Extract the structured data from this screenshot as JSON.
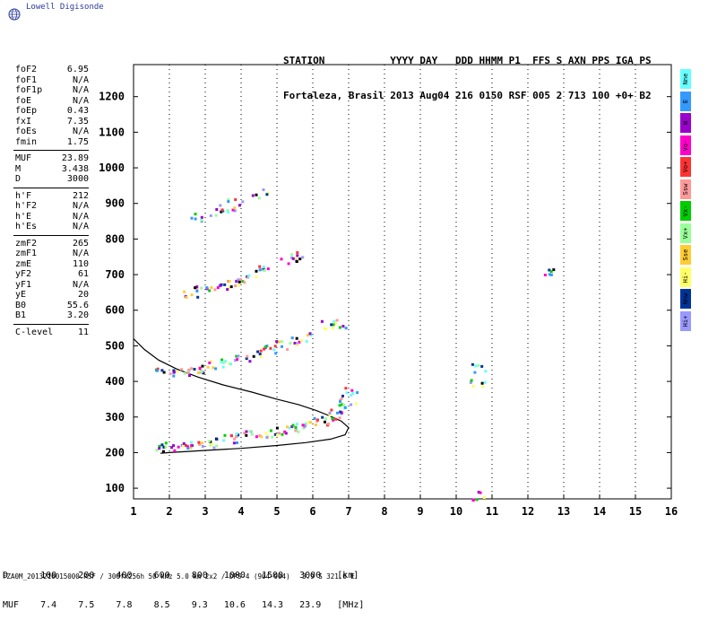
{
  "brand": {
    "name": "Lowell Digisonde",
    "icon": "globe-icon"
  },
  "header": {
    "labels": "STATION           YYYY DAY   DDD HHMM P1  FFS S AXN PPS IGA PS",
    "values": "Fortaleza, Brasil 2013 Aug04 216 0150 RSF 005 2 713 100 +0+ B2"
  },
  "params": {
    "group1": [
      {
        "label": "foF2",
        "value": "6.95"
      },
      {
        "label": "foF1",
        "value": "N/A"
      },
      {
        "label": "foF1p",
        "value": "N/A"
      },
      {
        "label": "foE",
        "value": "N/A"
      },
      {
        "label": "foEp",
        "value": "0.43"
      },
      {
        "label": "fxI",
        "value": "7.35"
      },
      {
        "label": "foEs",
        "value": "N/A"
      },
      {
        "label": "fmin",
        "value": "1.75"
      }
    ],
    "group2": [
      {
        "label": "MUF",
        "value": "23.89"
      },
      {
        "label": "M",
        "value": "3.438"
      },
      {
        "label": "D",
        "value": "3000"
      }
    ],
    "group3": [
      {
        "label": "h'F",
        "value": "212"
      },
      {
        "label": "h'F2",
        "value": "N/A"
      },
      {
        "label": "h'E",
        "value": "N/A"
      },
      {
        "label": "h'Es",
        "value": "N/A"
      }
    ],
    "group4": [
      {
        "label": "zmF2",
        "value": "265"
      },
      {
        "label": "zmF1",
        "value": "N/A"
      },
      {
        "label": "zmE",
        "value": "110"
      },
      {
        "label": "yF2",
        "value": "61"
      },
      {
        "label": "yF1",
        "value": "N/A"
      },
      {
        "label": "yE",
        "value": "20"
      },
      {
        "label": "B0",
        "value": "55.6"
      },
      {
        "label": "B1",
        "value": "3.20"
      }
    ],
    "group5": [
      {
        "label": "C-level",
        "value": "11"
      }
    ]
  },
  "legend": [
    {
      "label": "Nne",
      "color": "#66ffff"
    },
    {
      "label": "E",
      "color": "#3399ff"
    },
    {
      "label": "W",
      "color": "#9900cc"
    },
    {
      "label": "Vo-",
      "color": "#ff00cc"
    },
    {
      "label": "Vo+",
      "color": "#ff3333"
    },
    {
      "label": "Ssw",
      "color": "#ff9999"
    },
    {
      "label": "Vx-",
      "color": "#00cc00"
    },
    {
      "label": "Vx+",
      "color": "#99ff99"
    },
    {
      "label": "Sse",
      "color": "#ffcc33"
    },
    {
      "label": "Hi-",
      "color": "#ffff66"
    },
    {
      "label": "Nnw",
      "color": "#003399"
    },
    {
      "label": "Hi+",
      "color": "#9999ff"
    }
  ],
  "dmuf": {
    "d_row": "D      100    200    400    600    800   1000   1500   3000   [km]",
    "muf_row": "MUF    7.4    7.5    7.8    8.5    9.3   10.6   14.3   23.9   [MHz]"
  },
  "footer": "FZA0M_2013216015000.RSF / 300fx256h 50 kHz 5.0 km 2x2 / DPS-4 (904-904)   3.9 S 321.6 E",
  "chart_data": {
    "type": "scatter",
    "xlim": [
      1,
      16
    ],
    "ylim": [
      70,
      1290
    ],
    "x_ticks": [
      1,
      2,
      3,
      4,
      5,
      6,
      7,
      8,
      9,
      10,
      11,
      12,
      13,
      14,
      15,
      16
    ],
    "y_ticks": [
      100,
      200,
      300,
      400,
      500,
      600,
      700,
      800,
      900,
      1000,
      1100,
      1200
    ],
    "grid": "dotted verticals",
    "series": [
      {
        "values": [
          [
            1.8,
            220
          ],
          [
            2.0,
            218
          ],
          [
            2.3,
            220
          ],
          [
            2.6,
            222
          ],
          [
            3.0,
            228
          ],
          [
            3.3,
            232
          ],
          [
            3.7,
            240
          ],
          [
            4.0,
            248
          ],
          [
            4.3,
            252
          ],
          [
            4.7,
            258
          ],
          [
            5.0,
            262
          ],
          [
            5.3,
            268
          ],
          [
            5.6,
            272
          ],
          [
            5.9,
            282
          ],
          [
            6.2,
            292
          ],
          [
            6.4,
            300
          ],
          [
            6.6,
            312
          ],
          [
            6.8,
            330
          ],
          [
            6.95,
            350
          ],
          [
            7.0,
            375
          ]
        ]
      },
      {
        "values": [
          [
            1.8,
            430
          ],
          [
            2.1,
            428
          ],
          [
            2.4,
            425
          ],
          [
            2.7,
            435
          ],
          [
            3.0,
            440
          ],
          [
            3.3,
            448
          ],
          [
            3.6,
            458
          ],
          [
            4.0,
            470
          ],
          [
            4.4,
            482
          ],
          [
            4.8,
            495
          ],
          [
            5.1,
            505
          ],
          [
            5.4,
            515
          ],
          [
            5.7,
            528
          ]
        ]
      },
      {
        "values": [
          [
            2.6,
            648
          ],
          [
            2.9,
            660
          ],
          [
            3.2,
            665
          ],
          [
            3.5,
            673
          ],
          [
            3.8,
            680
          ],
          [
            4.1,
            690
          ],
          [
            4.4,
            708
          ],
          [
            4.6,
            720
          ],
          [
            5.3,
            740
          ],
          [
            5.6,
            758
          ]
        ]
      },
      {
        "values": [
          [
            2.8,
            865
          ],
          [
            3.3,
            880
          ],
          [
            3.6,
            892
          ],
          [
            3.8,
            902
          ],
          [
            4.5,
            930
          ]
        ]
      },
      {
        "values": [
          [
            6.4,
            560
          ],
          [
            6.7,
            565
          ],
          [
            10.6,
            440
          ],
          [
            10.55,
            400
          ],
          [
            12.5,
            710
          ],
          [
            10.6,
            80
          ]
        ]
      }
    ],
    "curves": [
      {
        "values": [
          [
            1.0,
            520
          ],
          [
            1.3,
            490
          ],
          [
            1.7,
            460
          ],
          [
            2.2,
            435
          ],
          [
            2.8,
            412
          ],
          [
            3.5,
            390
          ],
          [
            4.3,
            370
          ],
          [
            5.0,
            350
          ],
          [
            5.6,
            335
          ],
          [
            6.1,
            318
          ],
          [
            6.5,
            302
          ],
          [
            6.8,
            288
          ],
          [
            7.0,
            270
          ],
          [
            6.9,
            250
          ],
          [
            6.5,
            238
          ],
          [
            5.8,
            228
          ],
          [
            5.0,
            220
          ],
          [
            4.0,
            212
          ],
          [
            3.0,
            206
          ],
          [
            2.0,
            200
          ],
          [
            1.75,
            198
          ]
        ]
      }
    ]
  }
}
